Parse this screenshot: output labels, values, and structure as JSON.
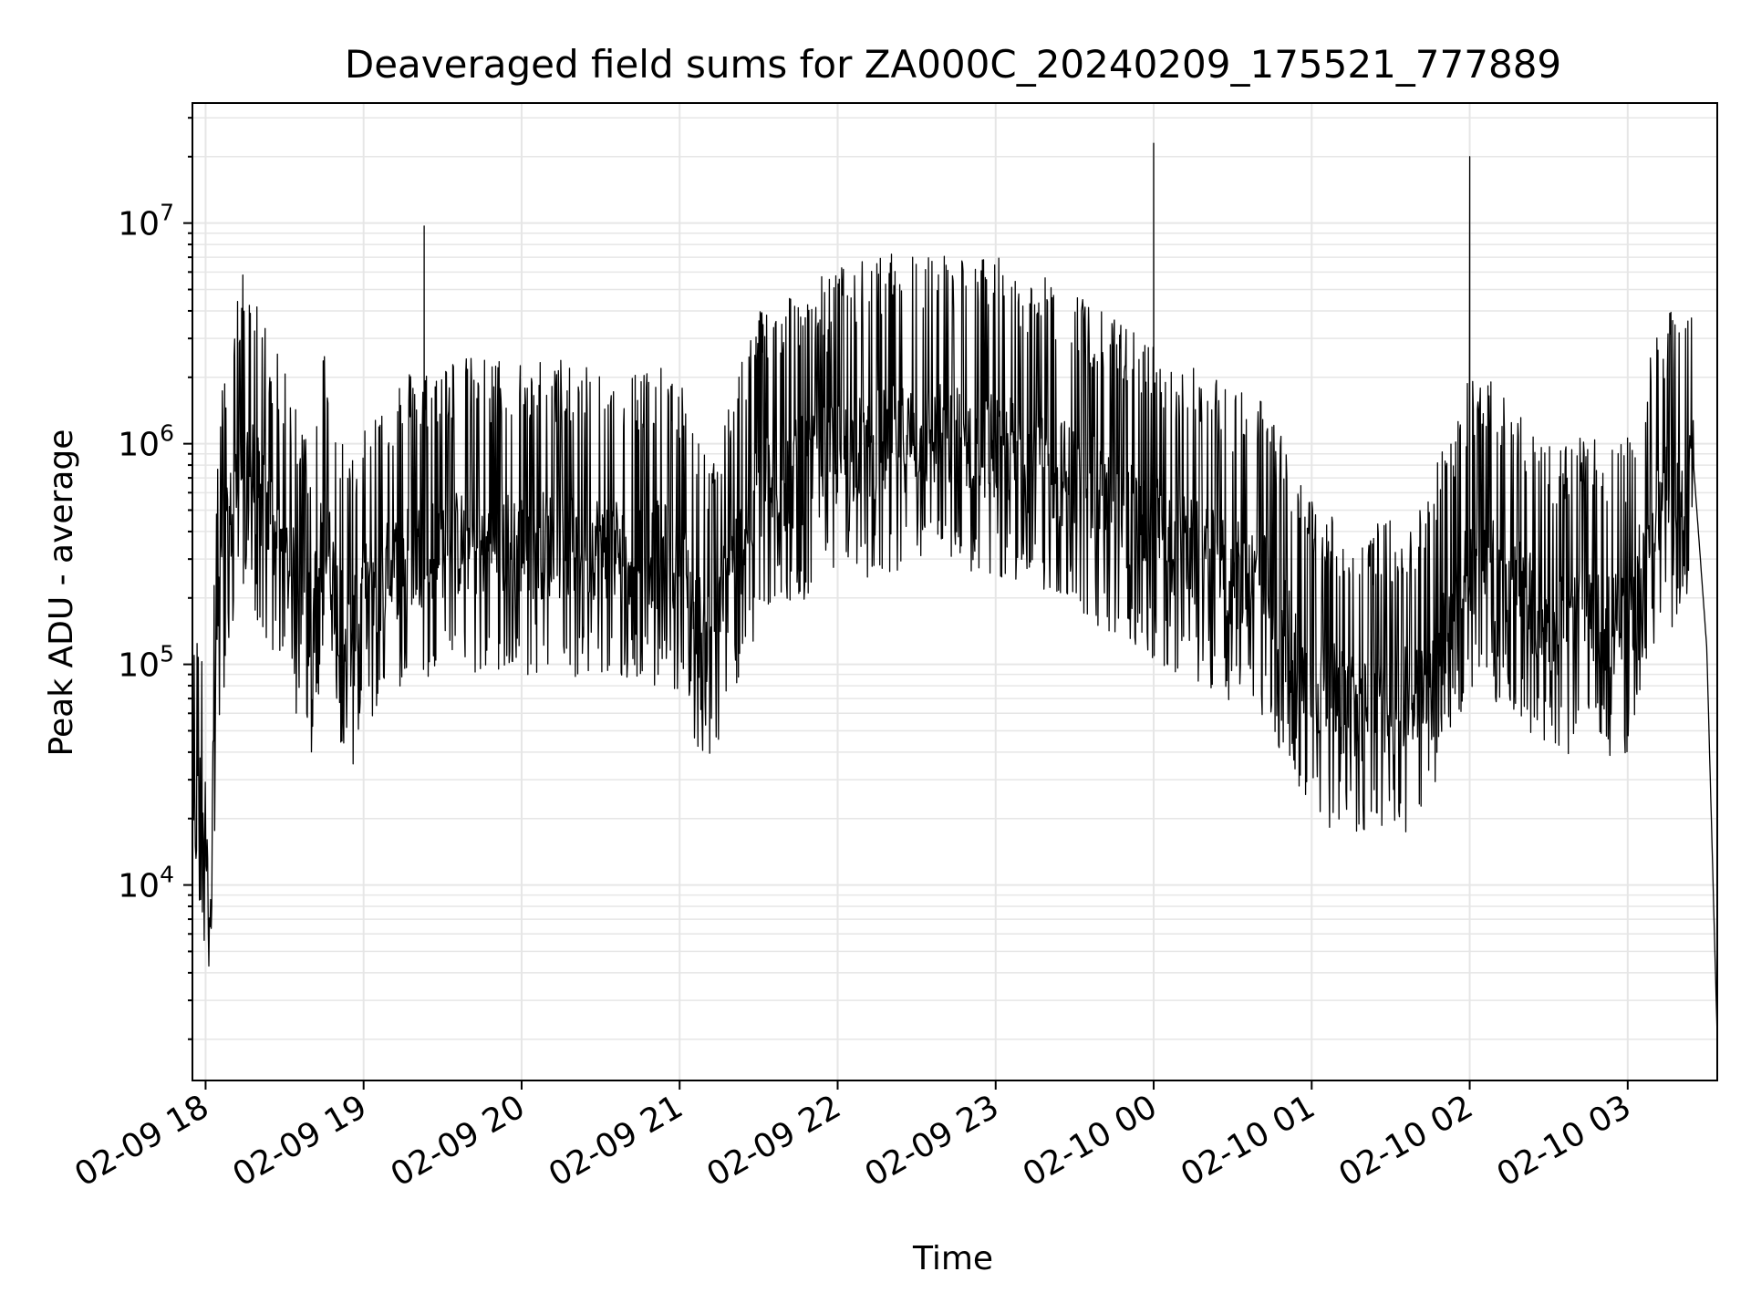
{
  "chart_data": {
    "type": "line",
    "title": "Deaveraged field sums for ZA000C_20240209_175521_777889",
    "xlabel": "Time",
    "ylabel": "Peak ADU - average",
    "yscale": "log",
    "xlim": [
      "2024-02-09T17:55",
      "2024-02-10T03:34"
    ],
    "ylim": [
      1300,
      35000000
    ],
    "grid": true,
    "line_color": "#000000",
    "x_ticks": [
      "02-09 18",
      "02-09 19",
      "02-09 20",
      "02-09 21",
      "02-09 22",
      "02-09 23",
      "02-10 00",
      "02-10 01",
      "02-10 02",
      "02-10 03"
    ],
    "x_tick_times": [
      "2024-02-09T18:00",
      "2024-02-09T19:00",
      "2024-02-09T20:00",
      "2024-02-09T21:00",
      "2024-02-09T22:00",
      "2024-02-09T23:00",
      "2024-02-10T00:00",
      "2024-02-10T01:00",
      "2024-02-10T02:00",
      "2024-02-10T03:00"
    ],
    "y_ticks": [
      {
        "base": "10",
        "exp": "4",
        "value": 10000
      },
      {
        "base": "10",
        "exp": "5",
        "value": 100000
      },
      {
        "base": "10",
        "exp": "6",
        "value": 1000000
      },
      {
        "base": "10",
        "exp": "7",
        "value": 10000000
      }
    ],
    "series": [
      {
        "x": [
          "2024-02-09T17:55",
          "2024-02-09T17:58",
          "2024-02-09T18:02",
          "2024-02-09T18:05",
          "2024-02-09T18:10",
          "2024-02-09T18:15",
          "2024-02-09T18:20",
          "2024-02-09T18:30",
          "2024-02-09T18:40",
          "2024-02-09T18:45",
          "2024-02-09T18:50",
          "2024-02-09T18:55",
          "2024-02-09T19:00",
          "2024-02-09T19:15",
          "2024-02-09T19:30",
          "2024-02-09T20:00",
          "2024-02-09T20:30",
          "2024-02-09T21:00",
          "2024-02-09T21:10",
          "2024-02-09T21:30",
          "2024-02-09T22:00",
          "2024-02-09T22:30",
          "2024-02-09T23:00",
          "2024-02-09T23:30",
          "2024-02-10T00:00",
          "2024-02-10T00:30",
          "2024-02-10T00:40",
          "2024-02-10T01:00",
          "2024-02-10T01:20",
          "2024-02-10T01:40",
          "2024-02-10T02:00",
          "2024-02-10T02:15",
          "2024-02-10T02:30",
          "2024-02-10T02:50",
          "2024-02-10T03:00",
          "2024-02-10T03:10",
          "2024-02-10T03:20",
          "2024-02-10T03:25",
          "2024-02-10T03:30",
          "2024-02-10T03:34"
        ],
        "y": [
          15000,
          25000,
          15000,
          200000,
          500000,
          1000000,
          600000,
          300000,
          150000,
          400000,
          200000,
          120000,
          200000,
          300000,
          350000,
          350000,
          350000,
          300000,
          120000,
          600000,
          900000,
          1100000,
          1000000,
          700000,
          400000,
          250000,
          250000,
          80000,
          60000,
          70000,
          300000,
          250000,
          150000,
          150000,
          150000,
          500000,
          600000,
          800000,
          120000,
          2000
        ]
      }
    ],
    "spikes": [
      {
        "time": "2024-02-09T19:23",
        "value": 9700000
      },
      {
        "time": "2024-02-09T21:56",
        "value": 2600000
      },
      {
        "time": "2024-02-09T23:22",
        "value": 4700000
      },
      {
        "time": "2024-02-09T23:56",
        "value": 2600000
      },
      {
        "time": "2024-02-10T00:00",
        "value": 23000000
      },
      {
        "time": "2024-02-10T02:00",
        "value": 20000000
      },
      {
        "time": "2024-02-09T18:17",
        "value": 3900000
      }
    ]
  }
}
